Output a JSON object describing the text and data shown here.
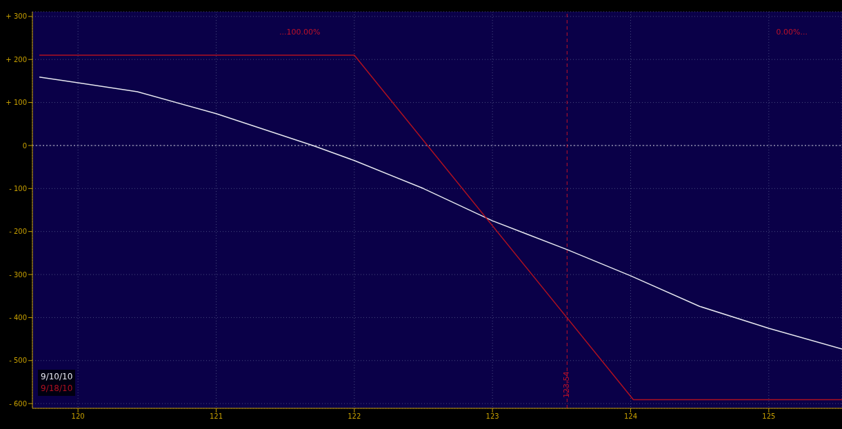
{
  "chart_data": {
    "type": "line",
    "xlim": [
      119.67,
      125.53
    ],
    "ylim": [
      -611,
      311
    ],
    "xticks": [
      120,
      121,
      122,
      123,
      124,
      125
    ],
    "yticks": [
      {
        "value": 300,
        "label": "+ 300"
      },
      {
        "value": 200,
        "label": "+ 200"
      },
      {
        "value": 100,
        "label": "+ 100"
      },
      0,
      {
        "value": -100,
        "label": "- 100"
      },
      {
        "value": -200,
        "label": "- 200"
      },
      {
        "value": -300,
        "label": "- 300"
      },
      {
        "value": -400,
        "label": "- 400"
      },
      {
        "value": -500,
        "label": "- 500"
      },
      {
        "value": -600,
        "label": "- 600"
      }
    ],
    "series": [
      {
        "name": "9/10/10",
        "color": "#e8e8f0",
        "x": [
          119.72,
          120,
          120.43,
          121,
          121.7,
          122,
          122.5,
          123,
          123.54,
          124,
          124.5,
          125,
          125.53
        ],
        "values": [
          159,
          146,
          125,
          74,
          0,
          -35,
          -100,
          -175,
          -242,
          -303,
          -374,
          -425,
          -473
        ]
      },
      {
        "name": "9/18/10",
        "color": "#b01020",
        "x": [
          119.72,
          122,
          124.02,
          125.53
        ],
        "values": [
          210,
          210,
          -591,
          -591
        ]
      }
    ],
    "ref_lines": [
      {
        "axis": "y",
        "value": 0,
        "label": null,
        "color": "#c8c8d8",
        "line_style": "dotted"
      },
      {
        "axis": "x",
        "value": 123.54,
        "label": "123.54",
        "color": "#c01028",
        "line_style": "dashed"
      }
    ],
    "annotations": [
      "...100.00%",
      "0.00%..."
    ],
    "grid": true,
    "legend": "bottom left",
    "line_style": "solid",
    "marker": "none"
  }
}
